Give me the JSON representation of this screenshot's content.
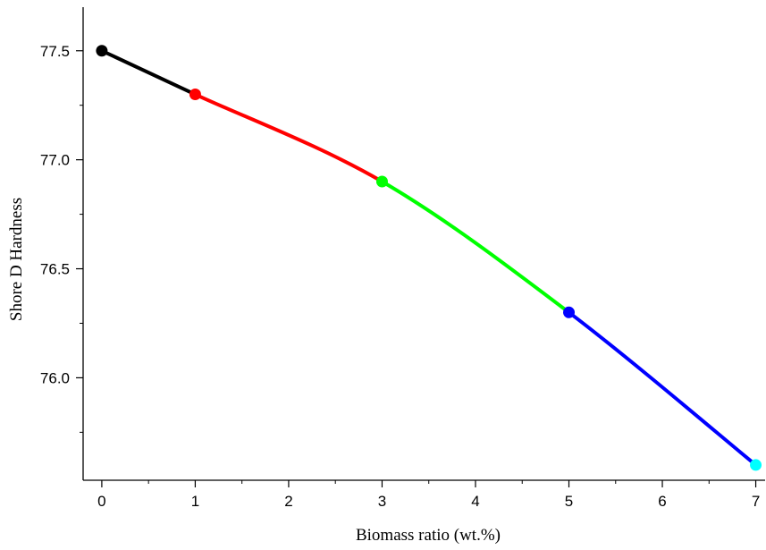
{
  "chart_data": {
    "type": "line",
    "title": "",
    "xlabel": "Biomass ratio (wt.%)",
    "ylabel": "Shore D Hardness",
    "xlim": [
      -0.2,
      7.1
    ],
    "ylim": [
      75.53,
      77.7
    ],
    "x_ticks": [
      "0",
      "1",
      "2",
      "3",
      "4",
      "5",
      "6",
      "7"
    ],
    "y_ticks": [
      "76.0",
      "76.5",
      "77.0",
      "77.5"
    ],
    "grid": false,
    "legend": "none",
    "points": [
      {
        "x": 0,
        "y": 77.5,
        "color": "#000000"
      },
      {
        "x": 1,
        "y": 77.3,
        "color": "#ff0000"
      },
      {
        "x": 3,
        "y": 76.9,
        "color": "#00ff00"
      },
      {
        "x": 5,
        "y": 76.3,
        "color": "#0000ff"
      },
      {
        "x": 7,
        "y": 75.6,
        "color": "#00ffff"
      }
    ],
    "segment_colors": [
      "#000000",
      "#ff0000",
      "#00ff00",
      "#0000ff"
    ]
  }
}
